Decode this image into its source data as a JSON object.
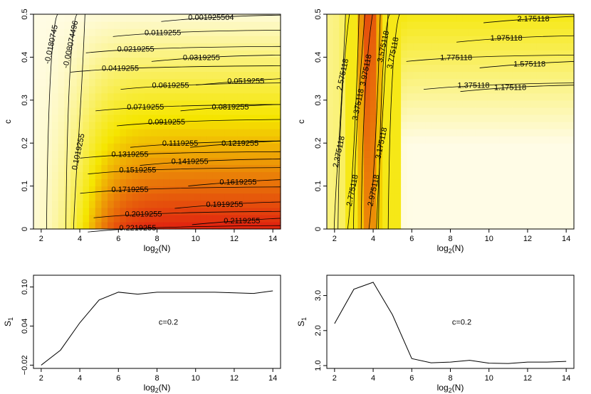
{
  "chart_data": [
    {
      "id": "contour-left",
      "type": "heatmap",
      "subtype": "filled contour",
      "xlabel": "log2(N)",
      "ylabel": "c",
      "xlim": [
        1.6,
        14.4
      ],
      "ylim": [
        0,
        0.5
      ],
      "xticks": [
        2,
        4,
        6,
        8,
        10,
        12,
        14
      ],
      "yticks": [
        0,
        0.1,
        0.2,
        0.3,
        0.4,
        0.5
      ],
      "colors": {
        "low": "#fffce6",
        "mid": "#f5e600",
        "high": "#e02010"
      },
      "contours": [
        {
          "label": "0.001925504",
          "level": 0.001925504
        },
        {
          "label": "-0.008074496",
          "level": -0.008074496
        },
        {
          "label": "-0.0180745",
          "level": -0.0180745
        },
        {
          "label": "0.0119255",
          "level": 0.0119255
        },
        {
          "label": "0.0219255",
          "level": 0.0219255
        },
        {
          "label": "0.0319255",
          "level": 0.0319255
        },
        {
          "label": "0.0419255",
          "level": 0.0419255
        },
        {
          "label": "0.0519255",
          "level": 0.0519255
        },
        {
          "label": "0.0619255",
          "level": 0.0619255
        },
        {
          "label": "0.0719255",
          "level": 0.0719255
        },
        {
          "label": "0.0819255",
          "level": 0.0819255
        },
        {
          "label": "0.0919255",
          "level": 0.0919255
        },
        {
          "label": "0.1019255",
          "level": 0.1019255
        },
        {
          "label": "0.1119255",
          "level": 0.1119255
        },
        {
          "label": "0.1219255",
          "level": 0.1219255
        },
        {
          "label": "0.1319255",
          "level": 0.1319255
        },
        {
          "label": "0.1419255",
          "level": 0.1419255
        },
        {
          "label": "0.1519255",
          "level": 0.1519255
        },
        {
          "label": "0.1619255",
          "level": 0.1619255
        },
        {
          "label": "0.1719255",
          "level": 0.1719255
        },
        {
          "label": "0.1919255",
          "level": 0.1919255
        },
        {
          "label": "0.2019255",
          "level": 0.2019255
        },
        {
          "label": "0.2119255",
          "level": 0.2119255
        },
        {
          "label": "0.2219255",
          "level": 0.2219255
        }
      ]
    },
    {
      "id": "contour-right",
      "type": "heatmap",
      "subtype": "filled contour",
      "xlabel": "log2(N)",
      "ylabel": "c",
      "xlim": [
        1.6,
        14.4
      ],
      "ylim": [
        0,
        0.5
      ],
      "xticks": [
        2,
        4,
        6,
        8,
        10,
        12,
        14
      ],
      "yticks": [
        0,
        0.1,
        0.2,
        0.3,
        0.4,
        0.5
      ],
      "colors": {
        "low": "#fffce6",
        "mid": "#f5e600",
        "high": "#e02010"
      },
      "contours": [
        {
          "label": "2.175118",
          "level": 2.175118
        },
        {
          "label": "1.975118",
          "level": 1.975118
        },
        {
          "label": "1.775118",
          "level": 1.775118
        },
        {
          "label": "1.575118",
          "level": 1.575118
        },
        {
          "label": "1.375118",
          "level": 1.375118
        },
        {
          "label": "1.175118",
          "level": 1.175118
        },
        {
          "label": "2.575118",
          "level": 2.575118
        },
        {
          "label": "2.375118",
          "level": 2.375118
        },
        {
          "label": "2.775118",
          "level": 2.775118
        },
        {
          "label": "2.975118",
          "level": 2.975118
        },
        {
          "label": "3.175118",
          "level": 3.175118
        },
        {
          "label": "3.375118",
          "level": 3.375118
        },
        {
          "label": "3.575118",
          "level": 3.575118
        },
        {
          "label": "3.775118",
          "level": 3.775118
        },
        {
          "label": "3.975118",
          "level": 3.975118
        }
      ]
    },
    {
      "id": "line-left",
      "type": "line",
      "xlabel": "log2(N)",
      "ylabel": "S1",
      "annotation": "c=0.2",
      "xlim": [
        1.6,
        14.4
      ],
      "ylim": [
        -0.025,
        0.118
      ],
      "xticks": [
        2,
        4,
        6,
        8,
        10,
        12,
        14
      ],
      "yticks": [
        -0.02,
        0.04,
        0.1
      ],
      "ytick_labels": [
        "−0.02",
        "0.04",
        "0.10"
      ],
      "x": [
        2,
        3,
        4,
        5,
        6,
        7,
        8,
        9,
        10,
        11,
        12,
        13,
        14
      ],
      "y": [
        -0.02,
        0.003,
        0.045,
        0.08,
        0.092,
        0.089,
        0.092,
        0.092,
        0.092,
        0.092,
        0.091,
        0.09,
        0.094
      ]
    },
    {
      "id": "line-right",
      "type": "line",
      "xlabel": "log2(N)",
      "ylabel": "S1",
      "annotation": "c=0.2",
      "xlim": [
        1.6,
        14.4
      ],
      "ylim": [
        0.92,
        3.58
      ],
      "xticks": [
        2,
        4,
        6,
        8,
        10,
        12,
        14
      ],
      "yticks": [
        1.0,
        2.0,
        3.0
      ],
      "ytick_labels": [
        "1.0",
        "2.0",
        "3.0"
      ],
      "x": [
        2,
        3,
        4,
        5,
        6,
        7,
        8,
        9,
        10,
        11,
        12,
        13,
        14
      ],
      "y": [
        2.2,
        3.18,
        3.38,
        2.45,
        1.2,
        1.08,
        1.1,
        1.15,
        1.07,
        1.06,
        1.1,
        1.1,
        1.12
      ]
    }
  ]
}
